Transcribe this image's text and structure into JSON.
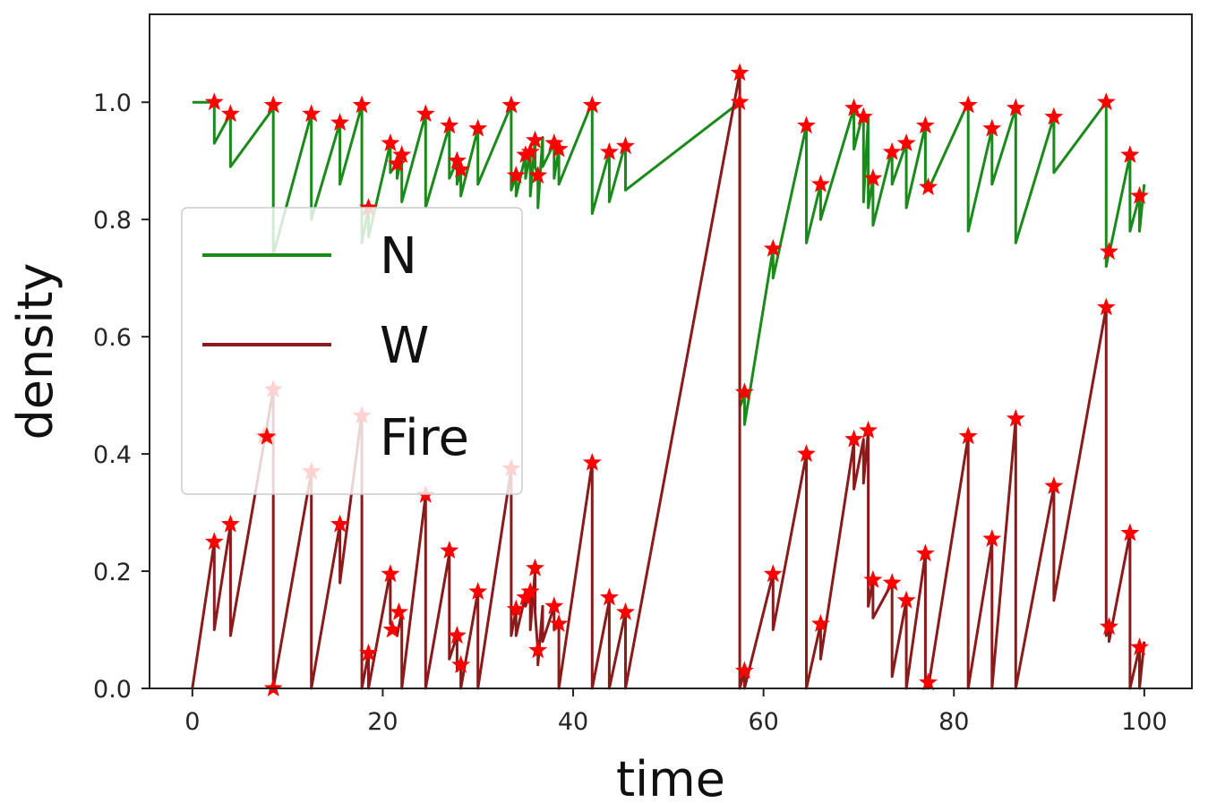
{
  "chart_data": {
    "type": "line",
    "title": "",
    "xlabel": "time",
    "ylabel": "density",
    "xlim": [
      -4.5,
      105
    ],
    "ylim": [
      0,
      1.15
    ],
    "xticks": [
      0,
      20,
      40,
      60,
      80,
      100
    ],
    "yticks": [
      0.0,
      0.2,
      0.4,
      0.6,
      0.8,
      1.0
    ],
    "xtick_labels": [
      "0",
      "20",
      "40",
      "60",
      "80",
      "100"
    ],
    "ytick_labels": [
      "0.0",
      "0.2",
      "0.4",
      "0.6",
      "0.8",
      "1.0"
    ],
    "grid": false,
    "legend": {
      "position": "center-left",
      "entries": [
        {
          "label": "N",
          "color": "#1a8a1a",
          "marker": "line"
        },
        {
          "label": "W",
          "color": "#8b1a1a",
          "marker": "line"
        },
        {
          "label": "Fire",
          "color": "#ff0000",
          "marker": "star"
        }
      ]
    },
    "fire_times": [
      2.3,
      4.0,
      8.5,
      12.5,
      15.5,
      17.8,
      18.5,
      20.8,
      21.5,
      22.0,
      24.5,
      27.0,
      27.8,
      28.2,
      30.0,
      33.5,
      34.0,
      35.0,
      35.5,
      36.0,
      36.3,
      36.8,
      38.0,
      38.5,
      42.0,
      43.8,
      45.5,
      57.5,
      58.0,
      61.0,
      64.5,
      66.0,
      69.5,
      70.5,
      71.0,
      71.5,
      73.5,
      75.0,
      77.0,
      77.3,
      81.5,
      84.0,
      86.5,
      90.5,
      96.0,
      96.3,
      98.5,
      99.5
    ],
    "series": [
      {
        "name": "N",
        "color": "#1a8a1a",
        "x": [
          0,
          2.3,
          2.3,
          4.0,
          4.0,
          8.5,
          8.5,
          12.5,
          12.5,
          15.5,
          15.5,
          17.8,
          17.8,
          18.5,
          18.5,
          20.8,
          20.8,
          21.5,
          21.5,
          22.0,
          22.0,
          24.5,
          24.5,
          27.0,
          27.0,
          27.8,
          27.8,
          28.2,
          28.2,
          30.0,
          30.0,
          33.5,
          33.5,
          34.0,
          34.0,
          35.0,
          35.0,
          35.5,
          35.5,
          36.0,
          36.0,
          36.3,
          36.3,
          36.8,
          36.8,
          38.0,
          38.0,
          38.5,
          38.5,
          42.0,
          42.0,
          43.8,
          43.8,
          45.5,
          45.5,
          57.5,
          57.5,
          58.0,
          58.0,
          61.0,
          61.0,
          64.5,
          64.5,
          66.0,
          66.0,
          69.5,
          69.5,
          70.5,
          70.5,
          71.0,
          71.0,
          71.5,
          71.5,
          73.5,
          73.5,
          75.0,
          75.0,
          77.0,
          77.0,
          77.3,
          77.3,
          81.5,
          81.5,
          84.0,
          84.0,
          86.5,
          86.5,
          90.5,
          90.5,
          96.0,
          96.0,
          96.3,
          96.3,
          98.5,
          98.5,
          99.5,
          99.5,
          100
        ],
        "y": [
          1.0,
          1.0,
          0.93,
          0.98,
          0.89,
          0.99,
          0.74,
          0.98,
          0.8,
          0.965,
          0.86,
          0.995,
          0.76,
          0.82,
          0.77,
          0.93,
          0.88,
          0.895,
          0.87,
          0.91,
          0.83,
          0.98,
          0.82,
          0.96,
          0.87,
          0.9,
          0.86,
          0.885,
          0.84,
          0.955,
          0.86,
          0.995,
          0.85,
          0.875,
          0.84,
          0.91,
          0.87,
          0.915,
          0.84,
          0.935,
          0.89,
          0.875,
          0.82,
          0.94,
          0.89,
          0.93,
          0.87,
          0.92,
          0.86,
          1.0,
          0.81,
          0.915,
          0.83,
          0.93,
          0.85,
          1.0,
          0.48,
          0.5,
          0.45,
          0.75,
          0.7,
          0.96,
          0.76,
          0.86,
          0.8,
          0.99,
          0.92,
          0.985,
          0.83,
          0.975,
          0.82,
          0.87,
          0.79,
          0.92,
          0.86,
          0.93,
          0.82,
          0.96,
          0.85,
          0.86,
          0.85,
          1.0,
          0.78,
          0.955,
          0.86,
          0.99,
          0.76,
          0.975,
          0.88,
          1.0,
          0.72,
          0.745,
          0.74,
          0.91,
          0.78,
          0.84,
          0.78,
          0.86
        ]
      },
      {
        "name": "W",
        "color": "#8b1a1a",
        "x": [
          0,
          2.3,
          2.3,
          4.0,
          4.0,
          8.5,
          8.5,
          12.5,
          12.5,
          15.5,
          15.5,
          17.8,
          17.8,
          18.5,
          18.5,
          20.8,
          20.8,
          21.5,
          21.5,
          22.0,
          22.0,
          24.5,
          24.5,
          27.0,
          27.0,
          27.8,
          27.8,
          28.2,
          28.2,
          30.0,
          30.0,
          33.5,
          33.5,
          34.0,
          34.0,
          35.0,
          35.0,
          35.5,
          35.5,
          36.0,
          36.0,
          36.3,
          36.3,
          36.8,
          36.8,
          38.0,
          38.0,
          38.5,
          38.5,
          42.0,
          42.0,
          43.8,
          43.8,
          45.5,
          45.5,
          57.5,
          57.5,
          58.0,
          58.0,
          61.0,
          61.0,
          64.5,
          64.5,
          66.0,
          66.0,
          69.5,
          69.5,
          70.5,
          70.5,
          71.0,
          71.0,
          71.5,
          71.5,
          73.5,
          73.5,
          75.0,
          75.0,
          77.0,
          77.0,
          77.3,
          77.3,
          81.5,
          81.5,
          84.0,
          84.0,
          86.5,
          86.5,
          90.5,
          90.5,
          96.0,
          96.0,
          96.3,
          96.3,
          98.5,
          98.5,
          99.5,
          99.5,
          100
        ],
        "y": [
          0.0,
          0.25,
          0.1,
          0.28,
          0.09,
          0.51,
          0.0,
          0.37,
          0.0,
          0.28,
          0.18,
          0.47,
          0.0,
          0.06,
          0.0,
          0.2,
          0.11,
          0.1,
          0.09,
          0.13,
          0.0,
          0.33,
          0.0,
          0.23,
          0.05,
          0.09,
          0.03,
          0.04,
          0.0,
          0.165,
          0.0,
          0.375,
          0.09,
          0.135,
          0.09,
          0.16,
          0.14,
          0.17,
          0.1,
          0.2,
          0.13,
          0.065,
          0.04,
          0.14,
          0.08,
          0.14,
          0.1,
          0.11,
          0.0,
          0.385,
          0.0,
          0.15,
          0.0,
          0.13,
          0.0,
          1.05,
          0.0,
          0.03,
          0.0,
          0.195,
          0.1,
          0.4,
          0.0,
          0.11,
          0.05,
          0.42,
          0.34,
          0.425,
          0.35,
          0.44,
          0.14,
          0.185,
          0.12,
          0.18,
          0.02,
          0.15,
          0.0,
          0.23,
          0.0,
          0.01,
          0.0,
          0.43,
          0.0,
          0.25,
          0.0,
          0.46,
          0.0,
          0.345,
          0.15,
          0.65,
          0.09,
          0.105,
          0.08,
          0.265,
          0.0,
          0.07,
          0.0,
          0.08
        ]
      }
    ],
    "fire_markers": {
      "color": "#ff0000",
      "points": [
        {
          "x": 2.3,
          "y": 1.0
        },
        {
          "x": 4.0,
          "y": 0.98
        },
        {
          "x": 8.5,
          "y": 0.995
        },
        {
          "x": 12.5,
          "y": 0.98
        },
        {
          "x": 15.5,
          "y": 0.965
        },
        {
          "x": 17.8,
          "y": 0.995
        },
        {
          "x": 18.5,
          "y": 0.82
        },
        {
          "x": 20.8,
          "y": 0.93
        },
        {
          "x": 21.5,
          "y": 0.895
        },
        {
          "x": 22.0,
          "y": 0.91
        },
        {
          "x": 24.5,
          "y": 0.98
        },
        {
          "x": 27.0,
          "y": 0.96
        },
        {
          "x": 27.8,
          "y": 0.9
        },
        {
          "x": 28.2,
          "y": 0.885
        },
        {
          "x": 30.0,
          "y": 0.955
        },
        {
          "x": 33.5,
          "y": 0.995
        },
        {
          "x": 34.0,
          "y": 0.875
        },
        {
          "x": 35.0,
          "y": 0.91
        },
        {
          "x": 35.5,
          "y": 0.915
        },
        {
          "x": 36.0,
          "y": 0.935
        },
        {
          "x": 36.3,
          "y": 0.875
        },
        {
          "x": 38.0,
          "y": 0.93
        },
        {
          "x": 38.5,
          "y": 0.92
        },
        {
          "x": 42.0,
          "y": 0.995
        },
        {
          "x": 43.8,
          "y": 0.915
        },
        {
          "x": 45.5,
          "y": 0.925
        },
        {
          "x": 57.5,
          "y": 1.0
        },
        {
          "x": 58.0,
          "y": 0.505
        },
        {
          "x": 61.0,
          "y": 0.75
        },
        {
          "x": 64.5,
          "y": 0.96
        },
        {
          "x": 66.0,
          "y": 0.86
        },
        {
          "x": 69.5,
          "y": 0.99
        },
        {
          "x": 70.5,
          "y": 0.975
        },
        {
          "x": 71.5,
          "y": 0.87
        },
        {
          "x": 73.5,
          "y": 0.915
        },
        {
          "x": 75.0,
          "y": 0.93
        },
        {
          "x": 77.0,
          "y": 0.96
        },
        {
          "x": 77.3,
          "y": 0.855
        },
        {
          "x": 81.5,
          "y": 0.995
        },
        {
          "x": 84.0,
          "y": 0.955
        },
        {
          "x": 86.5,
          "y": 0.99
        },
        {
          "x": 90.5,
          "y": 0.975
        },
        {
          "x": 96.0,
          "y": 1.0
        },
        {
          "x": 96.3,
          "y": 0.745
        },
        {
          "x": 98.5,
          "y": 0.91
        },
        {
          "x": 99.5,
          "y": 0.84
        },
        {
          "x": 2.3,
          "y": 0.25
        },
        {
          "x": 4.0,
          "y": 0.28
        },
        {
          "x": 7.5,
          "y": 0.43
        },
        {
          "x": 8.5,
          "y": 0.51
        },
        {
          "x": 8.5,
          "y": 0.0
        },
        {
          "x": 12.5,
          "y": 0.37
        },
        {
          "x": 15.5,
          "y": 0.28
        },
        {
          "x": 17.8,
          "y": 0.465
        },
        {
          "x": 18.5,
          "y": 0.06
        },
        {
          "x": 20.8,
          "y": 0.195
        },
        {
          "x": 21.0,
          "y": 0.1
        },
        {
          "x": 21.7,
          "y": 0.13
        },
        {
          "x": 24.5,
          "y": 0.33
        },
        {
          "x": 27.0,
          "y": 0.235
        },
        {
          "x": 27.8,
          "y": 0.09
        },
        {
          "x": 28.2,
          "y": 0.04
        },
        {
          "x": 30.0,
          "y": 0.165
        },
        {
          "x": 33.5,
          "y": 0.375
        },
        {
          "x": 34.0,
          "y": 0.135
        },
        {
          "x": 35.0,
          "y": 0.155
        },
        {
          "x": 35.5,
          "y": 0.165
        },
        {
          "x": 36.0,
          "y": 0.205
        },
        {
          "x": 36.3,
          "y": 0.065
        },
        {
          "x": 38.0,
          "y": 0.14
        },
        {
          "x": 38.5,
          "y": 0.11
        },
        {
          "x": 42.0,
          "y": 0.385
        },
        {
          "x": 43.8,
          "y": 0.155
        },
        {
          "x": 45.5,
          "y": 0.13
        },
        {
          "x": 57.5,
          "y": 1.05
        },
        {
          "x": 58.0,
          "y": 0.03
        },
        {
          "x": 61.0,
          "y": 0.195
        },
        {
          "x": 64.5,
          "y": 0.4
        },
        {
          "x": 66.0,
          "y": 0.11
        },
        {
          "x": 69.5,
          "y": 0.425
        },
        {
          "x": 71.0,
          "y": 0.44
        },
        {
          "x": 71.5,
          "y": 0.185
        },
        {
          "x": 73.5,
          "y": 0.18
        },
        {
          "x": 75.0,
          "y": 0.15
        },
        {
          "x": 77.0,
          "y": 0.23
        },
        {
          "x": 77.3,
          "y": 0.01
        },
        {
          "x": 81.5,
          "y": 0.43
        },
        {
          "x": 84.0,
          "y": 0.255
        },
        {
          "x": 86.5,
          "y": 0.46
        },
        {
          "x": 90.5,
          "y": 0.345
        },
        {
          "x": 96.0,
          "y": 0.65
        },
        {
          "x": 96.3,
          "y": 0.105
        },
        {
          "x": 98.5,
          "y": 0.265
        },
        {
          "x": 99.5,
          "y": 0.07
        }
      ]
    }
  }
}
